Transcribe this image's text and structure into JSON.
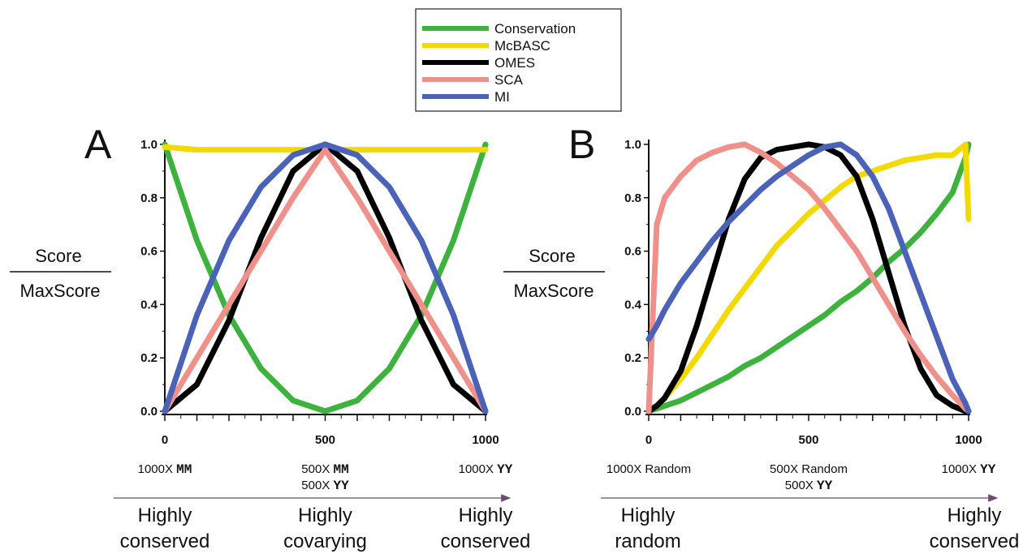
{
  "legend": [
    {
      "name": "Conservation",
      "color": "#3db33d"
    },
    {
      "name": "McBASC",
      "color": "#f2d900"
    },
    {
      "name": "OMES",
      "color": "#000000"
    },
    {
      "name": "SCA",
      "color": "#f0908a"
    },
    {
      "name": "MI",
      "color": "#4a63b8"
    }
  ],
  "ylabel_top": "Score",
  "ylabel_bottom": "MaxScore",
  "chart_data": [
    {
      "type": "line",
      "panel": "A",
      "xlim": [
        0,
        1000
      ],
      "ylim": [
        0,
        1.0
      ],
      "x_ticks": [
        "0",
        "500",
        "1000"
      ],
      "y_ticks": [
        "0.0",
        "0.2",
        "0.4",
        "0.6",
        "0.8",
        "1.0"
      ],
      "x": [
        0,
        100,
        200,
        300,
        400,
        500,
        600,
        700,
        800,
        900,
        1000
      ],
      "series": [
        {
          "name": "Conservation",
          "color": "#3db33d",
          "values": [
            1.0,
            0.64,
            0.36,
            0.16,
            0.04,
            0.0,
            0.04,
            0.16,
            0.36,
            0.64,
            1.0
          ]
        },
        {
          "name": "McBASC",
          "color": "#f2d900",
          "values": [
            0.99,
            0.98,
            0.98,
            0.98,
            0.98,
            0.98,
            0.98,
            0.98,
            0.98,
            0.98,
            0.98
          ]
        },
        {
          "name": "OMES",
          "color": "#000000",
          "values": [
            0.0,
            0.1,
            0.34,
            0.65,
            0.9,
            1.0,
            0.9,
            0.65,
            0.34,
            0.1,
            0.0
          ]
        },
        {
          "name": "SCA",
          "color": "#f0908a",
          "values": [
            0.0,
            0.2,
            0.4,
            0.6,
            0.8,
            0.98,
            0.8,
            0.6,
            0.4,
            0.2,
            0.0
          ]
        },
        {
          "name": "MI",
          "color": "#4a63b8",
          "values": [
            0.0,
            0.36,
            0.64,
            0.84,
            0.96,
            1.0,
            0.96,
            0.84,
            0.64,
            0.36,
            0.0
          ]
        }
      ],
      "conditions": [
        {
          "at": 0,
          "lines": [
            {
              "text": "1000X ",
              "mono": "MM"
            }
          ]
        },
        {
          "at": 500,
          "lines": [
            {
              "text": "500X ",
              "mono": "MM"
            },
            {
              "text": "500X ",
              "mono": "YY"
            }
          ]
        },
        {
          "at": 1000,
          "lines": [
            {
              "text": "1000X ",
              "mono": "YY"
            }
          ]
        }
      ],
      "regions": [
        {
          "at": 0,
          "line1": "Highly",
          "line2": "conserved"
        },
        {
          "at": 500,
          "line1": "Highly",
          "line2": "covarying"
        },
        {
          "at": 1000,
          "line1": "Highly",
          "line2": "conserved"
        }
      ]
    },
    {
      "type": "line",
      "panel": "B",
      "xlim": [
        0,
        1000
      ],
      "ylim": [
        0,
        1.0
      ],
      "x_ticks": [
        "0",
        "500",
        "1000"
      ],
      "y_ticks": [
        "0.0",
        "0.2",
        "0.4",
        "0.6",
        "0.8",
        "1.0"
      ],
      "x": [
        0,
        25,
        50,
        100,
        150,
        200,
        250,
        300,
        350,
        400,
        450,
        500,
        550,
        600,
        650,
        700,
        750,
        800,
        850,
        900,
        950,
        990,
        1000
      ],
      "series": [
        {
          "name": "Conservation",
          "color": "#3db33d",
          "values": [
            0.0,
            0.01,
            0.02,
            0.04,
            0.07,
            0.1,
            0.13,
            0.17,
            0.2,
            0.24,
            0.28,
            0.32,
            0.36,
            0.41,
            0.45,
            0.5,
            0.56,
            0.61,
            0.67,
            0.74,
            0.82,
            0.95,
            1.0
          ]
        },
        {
          "name": "McBASC",
          "color": "#f2d900",
          "values": [
            0.01,
            0.02,
            0.05,
            0.12,
            0.2,
            0.29,
            0.38,
            0.46,
            0.54,
            0.62,
            0.68,
            0.74,
            0.79,
            0.84,
            0.88,
            0.9,
            0.92,
            0.94,
            0.95,
            0.96,
            0.96,
            1.0,
            0.72
          ]
        },
        {
          "name": "OMES",
          "color": "#000000",
          "values": [
            0.0,
            0.02,
            0.05,
            0.15,
            0.32,
            0.52,
            0.72,
            0.87,
            0.95,
            0.98,
            0.99,
            1.0,
            0.99,
            0.96,
            0.88,
            0.72,
            0.52,
            0.32,
            0.16,
            0.06,
            0.02,
            0.0,
            0.0
          ]
        },
        {
          "name": "SCA",
          "color": "#f0908a",
          "values": [
            0.0,
            0.7,
            0.8,
            0.88,
            0.94,
            0.97,
            0.99,
            1.0,
            0.97,
            0.93,
            0.88,
            0.83,
            0.76,
            0.68,
            0.6,
            0.5,
            0.4,
            0.3,
            0.21,
            0.13,
            0.06,
            0.01,
            0.0
          ]
        },
        {
          "name": "MI",
          "color": "#4a63b8",
          "values": [
            0.27,
            0.32,
            0.38,
            0.48,
            0.56,
            0.64,
            0.71,
            0.77,
            0.83,
            0.88,
            0.92,
            0.96,
            0.99,
            1.0,
            0.96,
            0.88,
            0.76,
            0.6,
            0.44,
            0.28,
            0.12,
            0.03,
            0.0
          ]
        }
      ],
      "conditions": [
        {
          "at": 0,
          "lines": [
            {
              "text": "1000X Random",
              "mono": ""
            }
          ]
        },
        {
          "at": 500,
          "lines": [
            {
              "text": "500X Random",
              "mono": ""
            },
            {
              "text": "500X ",
              "mono": "YY"
            }
          ]
        },
        {
          "at": 1000,
          "lines": [
            {
              "text": "1000X ",
              "mono": "YY"
            }
          ]
        }
      ],
      "regions": [
        {
          "at": 0,
          "line1": "Highly",
          "line2": "random"
        },
        {
          "at": 1000,
          "line1": "Highly",
          "line2": "conserved"
        }
      ]
    }
  ]
}
